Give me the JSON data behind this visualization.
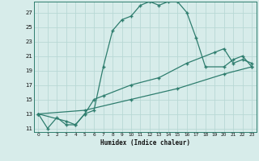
{
  "xlabel": "Humidex (Indice chaleur)",
  "bg_color": "#d7ecea",
  "grid_color": "#b8d8d5",
  "line_color": "#2e7d6e",
  "xlim": [
    -0.5,
    23.5
  ],
  "ylim": [
    10.5,
    28.5
  ],
  "yticks": [
    11,
    13,
    15,
    17,
    19,
    21,
    23,
    25,
    27
  ],
  "xticks": [
    0,
    1,
    2,
    3,
    4,
    5,
    6,
    7,
    8,
    9,
    10,
    11,
    12,
    13,
    14,
    15,
    16,
    17,
    18,
    19,
    20,
    21,
    22,
    23
  ],
  "line1_x": [
    0,
    1,
    2,
    3,
    4,
    5,
    6,
    7,
    8,
    9,
    10,
    11,
    12,
    13,
    14,
    15,
    16,
    17,
    18,
    20,
    21,
    22,
    23
  ],
  "line1_y": [
    13,
    11,
    12.5,
    11.5,
    11.5,
    13,
    13.5,
    19.5,
    24.5,
    26,
    26.5,
    28,
    28.5,
    28,
    28.5,
    28.5,
    27,
    23.5,
    19.5,
    19.5,
    20.5,
    21,
    19.5
  ],
  "line2_x": [
    0,
    3,
    4,
    5,
    6,
    7,
    10,
    13,
    16,
    19,
    20,
    21,
    22,
    23
  ],
  "line2_y": [
    13,
    12,
    11.5,
    13,
    15,
    15.5,
    17,
    18,
    20,
    21.5,
    22,
    20,
    20.5,
    20
  ],
  "line3_x": [
    0,
    5,
    10,
    15,
    20,
    23
  ],
  "line3_y": [
    13,
    13.5,
    15,
    16.5,
    18.5,
    19.5
  ]
}
